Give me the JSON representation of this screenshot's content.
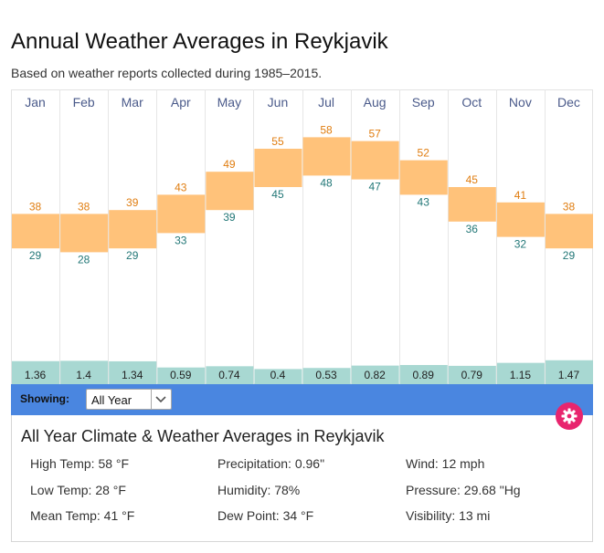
{
  "page": {
    "title": "Annual Weather Averages in Reykjavik",
    "subtitle": "Based on weather reports collected during 1985–2015."
  },
  "chart_data": {
    "type": "bar",
    "categories": [
      "Jan",
      "Feb",
      "Mar",
      "Apr",
      "May",
      "Jun",
      "Jul",
      "Aug",
      "Sep",
      "Oct",
      "Nov",
      "Dec"
    ],
    "series": [
      {
        "name": "",
        "values": [
          38,
          38,
          39,
          43,
          49,
          55,
          58,
          57,
          52,
          45,
          41,
          38
        ]
      },
      {
        "name": "",
        "values": [
          29,
          28,
          29,
          33,
          39,
          45,
          48,
          47,
          43,
          36,
          32,
          29
        ]
      },
      {
        "name": "",
        "values": [
          "1.36",
          "1.4",
          "1.34",
          "0.59",
          "0.74",
          "0.4",
          "0.53",
          "0.82",
          "0.89",
          "0.79",
          "1.15",
          "1.47"
        ]
      }
    ],
    "colors": {
      "temp_range": "#ffc27a",
      "high_label": "#e07d10",
      "low_label": "#227777",
      "precip": "#a8d8d2",
      "month_label": "#4a5a8a"
    },
    "grid": true
  },
  "controls": {
    "showing_label": "Showing:",
    "period_select_value": "All Year"
  },
  "panel": {
    "title": "All Year Climate & Weather Averages in Reykjavik",
    "stats": [
      [
        "High Temp: 58 °F",
        "Precipitation: 0.96\"",
        "Wind: 12 mph"
      ],
      [
        "Low Temp: 28 °F",
        "Humidity: 78%",
        "Pressure: 29.68 \"Hg"
      ],
      [
        "Mean Temp: 41 °F",
        "Dew Point: 34 °F",
        "Visibility: 13 mi"
      ]
    ]
  },
  "icons": {
    "settings": "gear-icon",
    "dropdown": "chevron-down-icon"
  }
}
